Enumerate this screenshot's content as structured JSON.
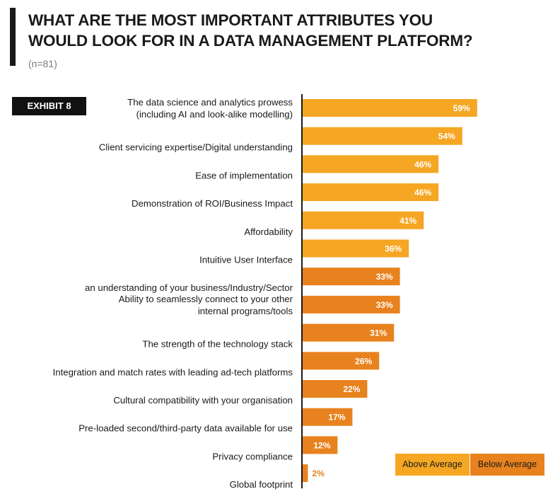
{
  "header": {
    "title": "WHAT ARE THE MOST IMPORTANT ATTRIBUTES YOU\nWOULD LOOK FOR IN A DATA MANAGEMENT PLATFORM?",
    "subtitle": "(n=81)",
    "exhibit_label": "EXHIBIT 8"
  },
  "colors": {
    "above_average": "#F5A623",
    "below_average": "#E8821E",
    "axis": "#1a1a1a",
    "data_label": "#ffffff",
    "small_label": "#E8821E"
  },
  "chart_data": {
    "type": "bar",
    "orientation": "horizontal",
    "categories": [
      "The data science and analytics prowess\n(including AI and look-alike modelling)",
      "Client servicing expertise/Digital understanding",
      "Ease of implementation",
      "Demonstration of ROI/Business Impact",
      "Affordability",
      "Intuitive User Interface",
      "an understanding of your business/Industry/Sector",
      "Ability to seamlessly connect to your other\ninternal programs/tools",
      "The strength of the technology stack",
      "Integration and match rates with leading ad-tech platforms",
      "Cultural compatibility with your organisation",
      "Pre-loaded second/third-party data available for use",
      "Privacy compliance",
      "Global footprint"
    ],
    "values": [
      59,
      54,
      46,
      46,
      41,
      36,
      33,
      33,
      31,
      26,
      22,
      17,
      12,
      2
    ],
    "labels": [
      "59%",
      "54%",
      "46%",
      "46%",
      "41%",
      "36%",
      "33%",
      "33%",
      "31%",
      "26%",
      "22%",
      "17%",
      "12%",
      "2%"
    ],
    "groups": [
      "Above Average",
      "Above Average",
      "Above Average",
      "Above Average",
      "Above Average",
      "Above Average",
      "Below Average",
      "Below Average",
      "Below Average",
      "Below Average",
      "Below Average",
      "Below Average",
      "Below Average",
      "Below Average"
    ],
    "legend": [
      {
        "name": "Above Average",
        "color": "#F5A623"
      },
      {
        "name": "Below Average",
        "color": "#E8821E"
      }
    ],
    "legend_position": "bottom-right",
    "xlim": [
      0,
      100
    ],
    "grid": false
  }
}
